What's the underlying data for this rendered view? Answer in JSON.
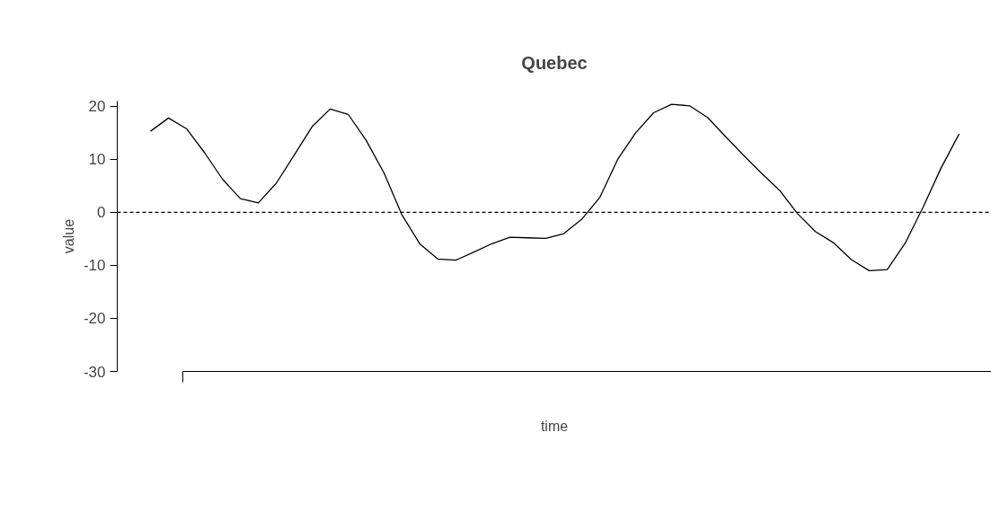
{
  "chart_data": {
    "type": "line",
    "title": "Quebec",
    "xlabel": "time",
    "ylabel": "value",
    "categories": [
      null,
      null,
      null,
      null,
      null,
      null,
      null,
      null,
      null,
      null,
      null,
      null,
      null,
      null,
      null,
      null,
      null,
      null,
      null,
      null,
      null,
      null,
      null,
      null,
      null,
      null,
      null,
      null,
      null,
      null,
      null,
      null,
      null,
      null,
      null,
      null,
      null,
      null,
      null,
      null,
      null,
      null,
      null,
      null,
      null,
      null
    ],
    "series": [
      {
        "color": "#000000",
        "values": [
          15.3,
          17.8,
          15.8,
          11.3,
          6.3,
          2.6,
          1.8,
          5.5,
          10.8,
          16.2,
          19.5,
          18.5,
          13.6,
          7.4,
          -0.5,
          -6,
          -8.8,
          -9,
          -7.5,
          -5.9,
          -4.7,
          -4.8,
          -4.9,
          -4,
          -1.3,
          2.8,
          10,
          15,
          18.8,
          20.4,
          20.1,
          17.9,
          14.3,
          10.8,
          7.4,
          4.2,
          -0.2,
          -3.6,
          -5.7,
          -8.9,
          -11,
          -10.8,
          -5.8,
          1,
          8.4,
          14.8
        ]
      }
    ],
    "ylim": [
      -30,
      21
    ],
    "yticks": [
      -30,
      -20,
      -10,
      0,
      10,
      20
    ],
    "ref_lines": [
      {
        "axis": "y",
        "value": 0,
        "color": "#000000",
        "line_style": "dashed"
      }
    ],
    "grid": false,
    "tick_labels": "y",
    "marker": "none",
    "line_style": "solid"
  }
}
